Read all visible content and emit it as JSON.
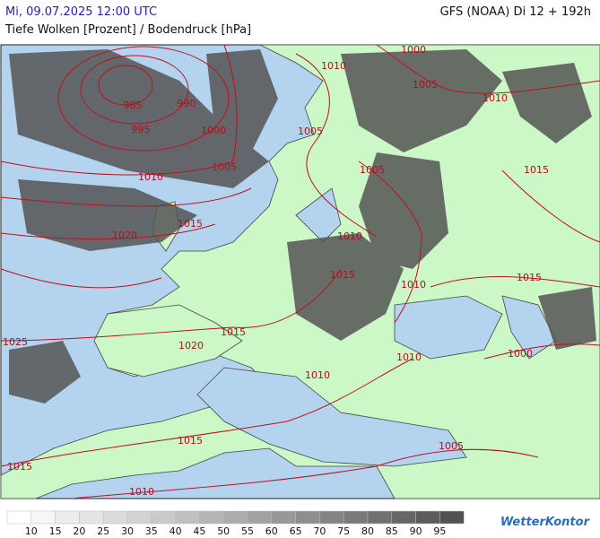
{
  "header": {
    "date": "Mi, 09.07.2025 12:00 UTC",
    "subtitle": "Tiefe Wolken [Prozent] / Bodendruck [hPa]",
    "model": "GFS (NOAA) Di 12 + 192h"
  },
  "isobar_labels": [
    985,
    990,
    995,
    1000,
    1005,
    1010,
    1015,
    1020,
    1025,
    1020,
    1015,
    1010,
    1000,
    1005,
    1010,
    1005,
    1005,
    1015,
    1010,
    1015,
    1010,
    1015,
    1000,
    1010,
    1010,
    1015,
    1005,
    1015,
    1010
  ],
  "legend": {
    "labels": [
      10,
      15,
      20,
      25,
      30,
      35,
      40,
      45,
      50,
      55,
      60,
      65,
      70,
      75,
      80,
      85,
      90,
      95
    ],
    "colors": [
      "#ffffff",
      "#f6f6f6",
      "#ededed",
      "#e4e4e4",
      "#dbdbdb",
      "#d2d2d2",
      "#c9c9c9",
      "#c0c0c0",
      "#b6b6b6",
      "#acacac",
      "#a2a2a2",
      "#989898",
      "#8e8e8e",
      "#848484",
      "#7a7a7a",
      "#707070",
      "#666666",
      "#5c5c5c",
      "#525252"
    ]
  },
  "logo": "WetterKontor"
}
